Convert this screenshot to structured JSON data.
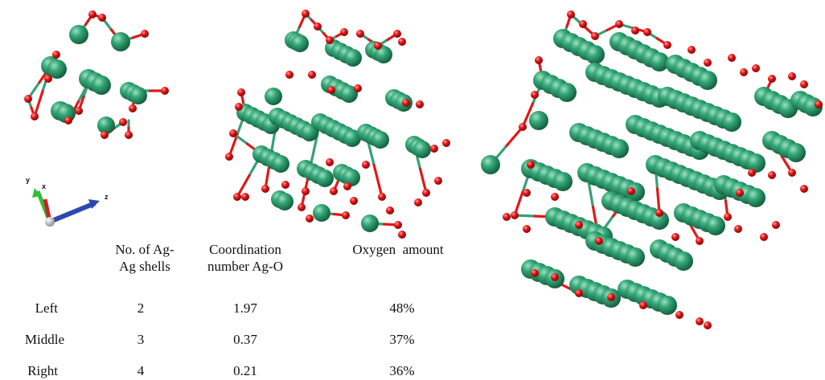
{
  "axes": {
    "y_label": "y",
    "x_label": "x",
    "z_label": "z"
  },
  "table": {
    "headers": [
      [
        "No. of Ag-",
        "Ag shells"
      ],
      [
        "Coordination",
        "number Ag-O"
      ],
      [
        "Oxygen  amount"
      ]
    ],
    "rows": [
      {
        "label": "Left",
        "shells": "2",
        "coordination": "1.97",
        "oxygen": "48%"
      },
      {
        "label": "Middle",
        "shells": "3",
        "coordination": "0.37",
        "oxygen": "37%"
      },
      {
        "label": "Right",
        "shells": "4",
        "coordination": "0.21",
        "oxygen": "36%"
      }
    ]
  },
  "colors": {
    "silver_atom": "#2e9a6a",
    "oxygen_atom": "#e01818",
    "ag_bond": "#35a079",
    "axis_y": "#2fbf3a",
    "axis_x": "#d02020",
    "axis_z": "#2c48b0"
  }
}
